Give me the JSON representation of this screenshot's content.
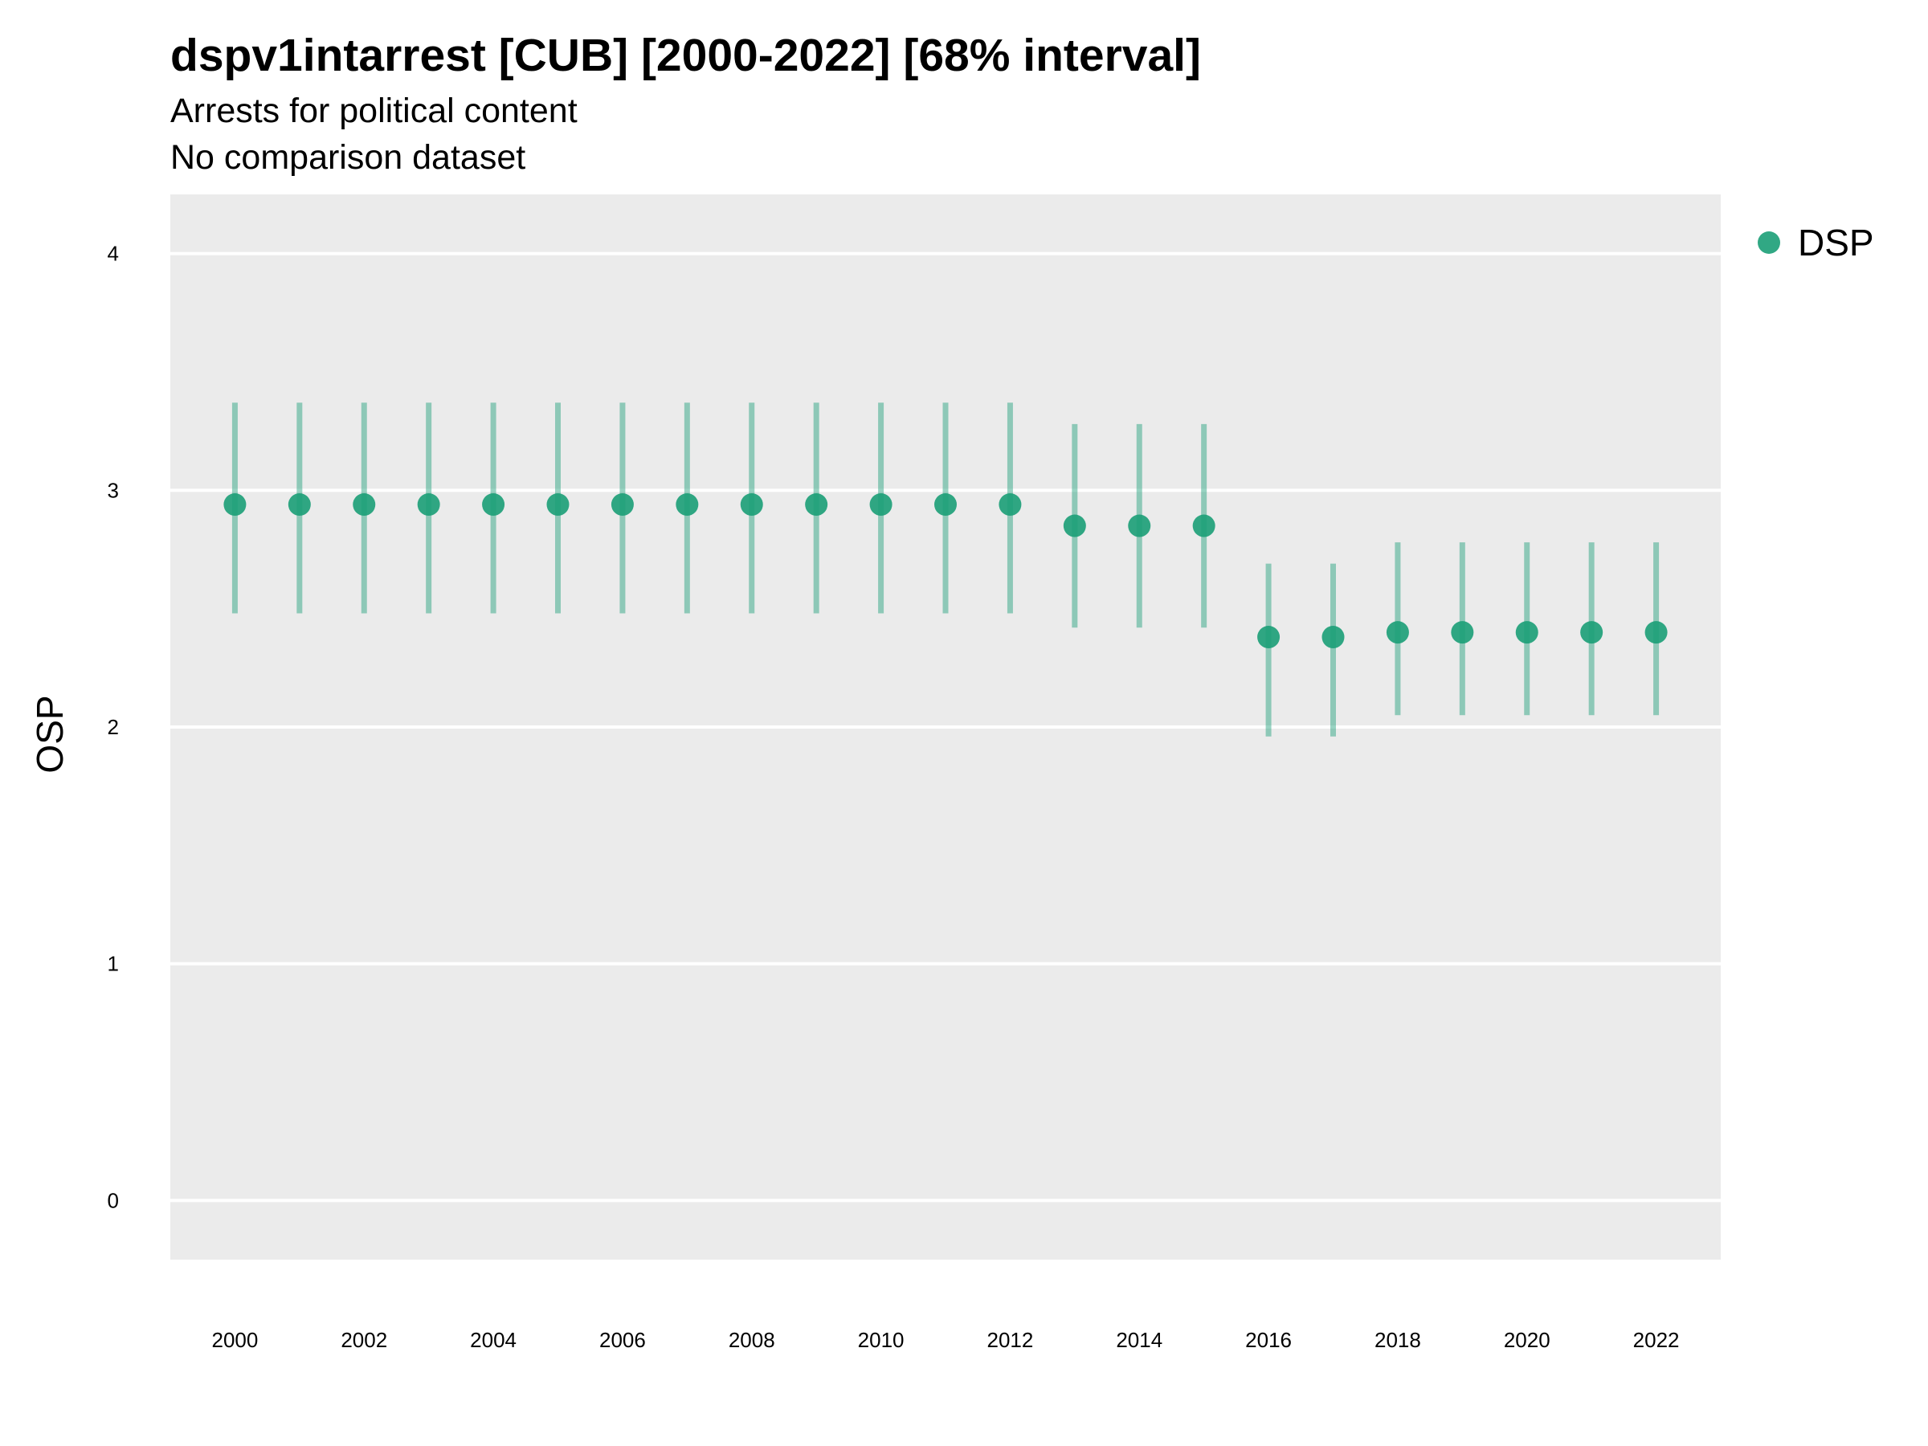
{
  "title": "dspv1intarrest [CUB] [2000-2022] [68% interval]",
  "subtitle_lines": [
    "Arrests for political content",
    "No comparison dataset"
  ],
  "colors": {
    "panel": "#ebebeb",
    "grid": "#ffffff",
    "point": "#1b9e77"
  },
  "chart_data": {
    "type": "scatter",
    "ylabel": "OSP",
    "xlabel": "",
    "ylim": [
      -0.25,
      4.25
    ],
    "xlim": [
      1999,
      2023
    ],
    "y_ticks": [
      "0",
      "1",
      "2",
      "3",
      "4"
    ],
    "x_ticks": [
      "2000",
      "2002",
      "2004",
      "2006",
      "2008",
      "2010",
      "2012",
      "2014",
      "2016",
      "2018",
      "2020",
      "2022"
    ],
    "grid": true,
    "legend": {
      "position": "right",
      "entries": [
        "DSP"
      ]
    },
    "series": [
      {
        "name": "DSP",
        "x": [
          2000,
          2001,
          2002,
          2003,
          2004,
          2005,
          2006,
          2007,
          2008,
          2009,
          2010,
          2011,
          2012,
          2013,
          2014,
          2015,
          2016,
          2017,
          2018,
          2019,
          2020,
          2021,
          2022
        ],
        "y": [
          2.94,
          2.94,
          2.94,
          2.94,
          2.94,
          2.94,
          2.94,
          2.94,
          2.94,
          2.94,
          2.94,
          2.94,
          2.94,
          2.85,
          2.85,
          2.85,
          2.38,
          2.38,
          2.4,
          2.4,
          2.4,
          2.4,
          2.4
        ],
        "lower": [
          2.48,
          2.48,
          2.48,
          2.48,
          2.48,
          2.48,
          2.48,
          2.48,
          2.48,
          2.48,
          2.48,
          2.48,
          2.48,
          2.42,
          2.42,
          2.42,
          1.96,
          1.96,
          2.05,
          2.05,
          2.05,
          2.05,
          2.05
        ],
        "upper": [
          3.37,
          3.37,
          3.37,
          3.37,
          3.37,
          3.37,
          3.37,
          3.37,
          3.37,
          3.37,
          3.37,
          3.37,
          3.37,
          3.28,
          3.28,
          3.28,
          2.69,
          2.69,
          2.78,
          2.78,
          2.78,
          2.78,
          2.78
        ]
      }
    ]
  }
}
